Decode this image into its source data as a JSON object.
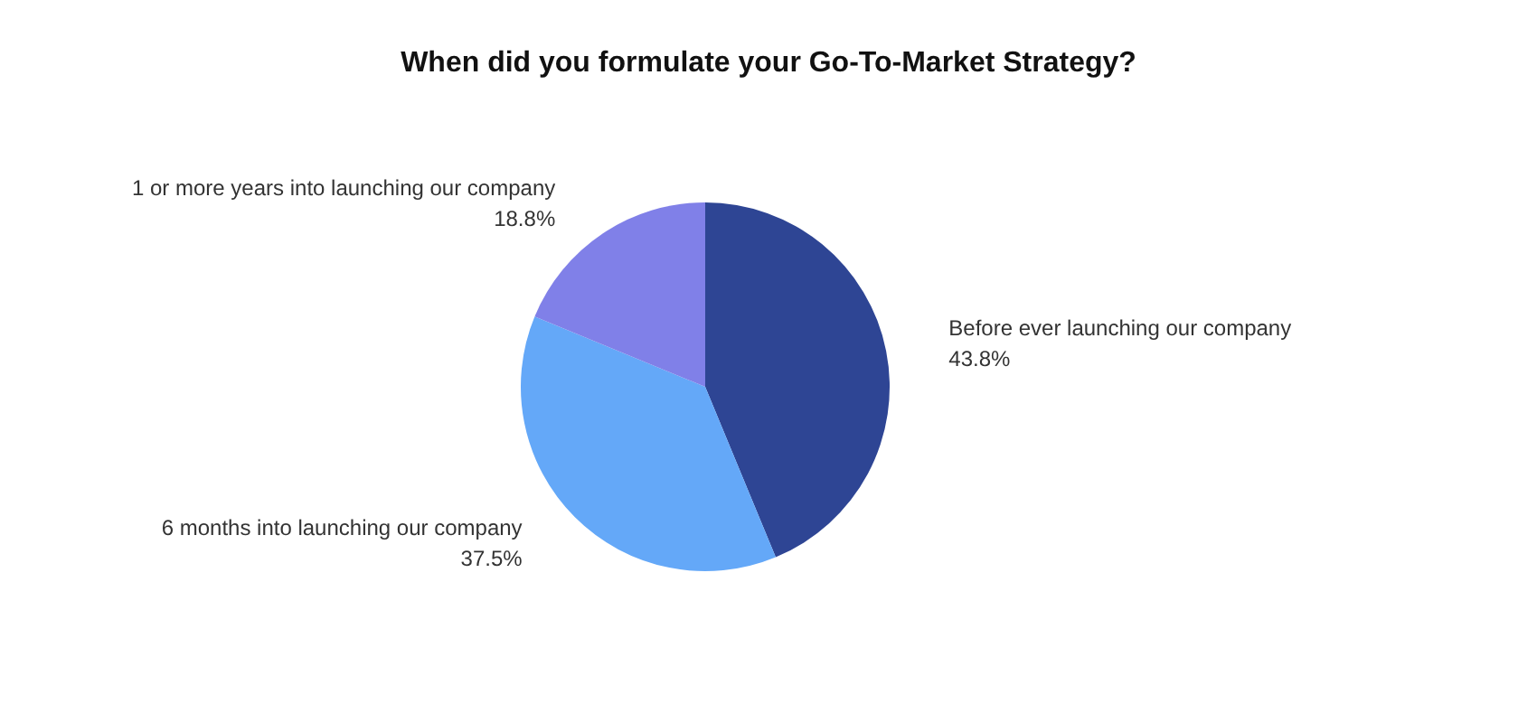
{
  "chart_data": {
    "type": "pie",
    "title": "When did you formulate your Go-To-Market Strategy?",
    "categories": [
      "Before ever launching our company",
      "6 months into launching our company",
      "1 or more years into launching our company"
    ],
    "values": [
      43.8,
      37.5,
      18.8
    ],
    "colors": [
      "#2e4594",
      "#64a8f8",
      "#8080e8"
    ],
    "value_labels": [
      "43.8%",
      "37.5%",
      "18.8%"
    ],
    "legend": false
  }
}
